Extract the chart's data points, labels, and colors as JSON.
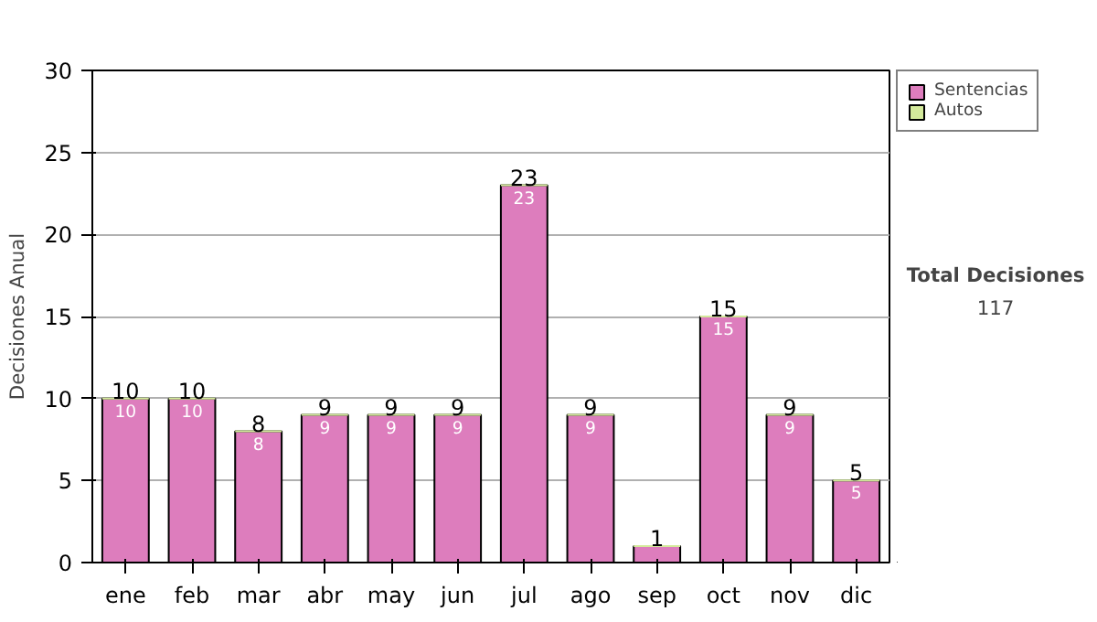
{
  "chart_data": {
    "type": "bar",
    "ylabel": "Decisiones Anual",
    "categories": [
      "ene",
      "feb",
      "mar",
      "abr",
      "may",
      "jun",
      "jul",
      "ago",
      "sep",
      "oct",
      "nov",
      "dic"
    ],
    "series": [
      {
        "name": "Sentencias",
        "color": "#dd7dbd",
        "values": [
          10,
          10,
          8,
          9,
          9,
          9,
          23,
          9,
          1,
          15,
          9,
          5
        ],
        "value_labels": [
          "10",
          "10",
          "8",
          "9",
          "9",
          "9",
          "23",
          "9",
          null,
          "15",
          "9",
          "5"
        ]
      },
      {
        "name": "Autos",
        "color": "#d4ea9c",
        "values": [
          0,
          0,
          0,
          0,
          0,
          0,
          0,
          0,
          0,
          0,
          0,
          0
        ]
      }
    ],
    "stacked": true,
    "ylim": [
      0,
      30
    ],
    "yticks": [
      0,
      5,
      10,
      15,
      20,
      25,
      30
    ],
    "grid": "y",
    "legend": "right",
    "totals": [
      "10",
      "10",
      "8",
      "9",
      "9",
      "9",
      "23",
      "9",
      "1",
      "15",
      "9",
      "5"
    ],
    "annotations": [
      "Total Decisiones",
      "117"
    ]
  }
}
